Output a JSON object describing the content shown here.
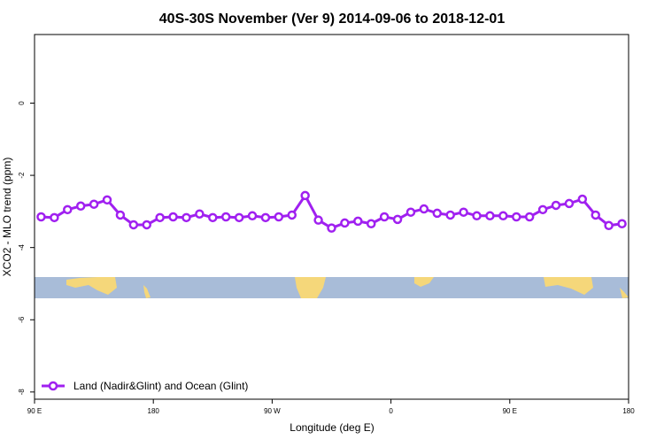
{
  "chart_data": {
    "type": "line",
    "title": "40S-30S November (Ver 9)   2014-09-06 to 2018-12-01",
    "x_label": "Longitude (deg E)",
    "y_label": "XCO2 - MLO trend (ppm)",
    "x": [
      95,
      105,
      115,
      125,
      135,
      145,
      155,
      165,
      175,
      185,
      195,
      205,
      215,
      225,
      235,
      245,
      255,
      265,
      275,
      285,
      295,
      305,
      315,
      325,
      335,
      345,
      355,
      365,
      375,
      385,
      395,
      405,
      415,
      425,
      435,
      445,
      455,
      465,
      475,
      485,
      495,
      505,
      515,
      525,
      535
    ],
    "series": [
      {
        "name": "Land (Nadir&Glint) and Ocean (Glint)",
        "color": "#a020f0",
        "values": [
          -3.15,
          -3.17,
          -2.95,
          -2.85,
          -2.8,
          -2.68,
          -3.1,
          -3.37,
          -3.37,
          -3.17,
          -3.15,
          -3.17,
          -3.07,
          -3.17,
          -3.15,
          -3.17,
          -3.12,
          -3.17,
          -3.15,
          -3.1,
          -2.56,
          -3.24,
          -3.46,
          -3.32,
          -3.27,
          -3.34,
          -3.15,
          -3.22,
          -3.02,
          -2.93,
          -3.05,
          -3.1,
          -3.02,
          -3.12,
          -3.12,
          -3.12,
          -3.15,
          -3.15,
          -2.95,
          -2.83,
          -2.78,
          -2.66,
          -3.1,
          -3.39,
          -3.34
        ]
      }
    ],
    "xlim": [
      90,
      540
    ],
    "xticks": [
      {
        "value": 90,
        "label": "90 E"
      },
      180,
      {
        "value": 270,
        "label": "90 W"
      },
      {
        "value": 360,
        "label": "0"
      },
      {
        "value": 450,
        "label": "90 E"
      },
      {
        "value": 540,
        "label": "180"
      }
    ],
    "ylim": [
      -8.2,
      1.9
    ],
    "yticks": [
      0,
      -2,
      -4,
      -6,
      -8
    ],
    "legend": "bottom-left"
  }
}
